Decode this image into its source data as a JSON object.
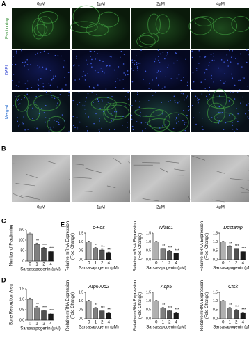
{
  "image_panel": {
    "label": "A",
    "columns": [
      "0μM",
      "1μM",
      "2μM",
      "4μM"
    ],
    "rows": [
      "F-actin ring",
      "DAPI",
      "Merged"
    ]
  },
  "sem_panel": {
    "label": "B",
    "columns": [
      "0μM",
      "1μM",
      "2μM",
      "4μM"
    ]
  },
  "chart_data": [
    {
      "type": "bar",
      "panel": "C",
      "ylabel": [
        "Number of F-actin ring"
      ],
      "xlabel": "Sarsasapogenin (μM)",
      "categories": [
        "0",
        "1",
        "2",
        "4"
      ],
      "values": [
        130,
        80,
        60,
        45
      ],
      "errors": [
        8,
        6,
        5,
        4
      ],
      "annotations": [
        null,
        "**",
        "***",
        "***"
      ],
      "colors": [
        "#b0b0b0",
        "#808080",
        "#505050",
        "#1a1a1a"
      ],
      "ylim": [
        0,
        150
      ],
      "yticks": [
        0,
        50,
        100,
        150
      ]
    },
    {
      "type": "bar",
      "panel": "D",
      "ylabel": [
        "Bone Resorption Area"
      ],
      "xlabel": "Sarsasapogenin (μM)",
      "categories": [
        "0",
        "1",
        "2",
        "4"
      ],
      "values": [
        1.0,
        0.6,
        0.45,
        0.3
      ],
      "errors": [
        0.06,
        0.05,
        0.04,
        0.04
      ],
      "annotations": [
        null,
        "**",
        "***",
        "***"
      ],
      "colors": [
        "#b0b0b0",
        "#808080",
        "#505050",
        "#1a1a1a"
      ],
      "ylim": [
        0,
        1.5
      ],
      "yticks": [
        {
          "value": 0,
          "label": "0.0"
        },
        {
          "value": 0.5,
          "label": "0.5"
        },
        {
          "value": 1.0,
          "label": "1.0"
        },
        {
          "value": 1.5,
          "label": "1.5"
        }
      ]
    },
    {
      "type": "bar",
      "panel": "E",
      "title": "c-Fos",
      "ylabel": [
        "Relative mRNA Expression",
        "(Fold Change)"
      ],
      "xlabel": "Sarsasapogenin (μM)",
      "categories": [
        "0",
        "1",
        "2",
        "4"
      ],
      "values": [
        1.0,
        0.65,
        0.55,
        0.4
      ],
      "errors": [
        0.05,
        0.04,
        0.04,
        0.03
      ],
      "annotations": [
        null,
        "**",
        "***",
        "***"
      ],
      "colors": [
        "#b0b0b0",
        "#808080",
        "#505050",
        "#1a1a1a"
      ],
      "ylim": [
        0,
        1.5
      ],
      "yticks": [
        {
          "value": 0,
          "label": "0.0"
        },
        {
          "value": 0.5,
          "label": "0.5"
        },
        {
          "value": 1.0,
          "label": "1.0"
        },
        {
          "value": 1.5,
          "label": "1.5"
        }
      ]
    },
    {
      "type": "bar",
      "title": "Nfatc1",
      "ylabel": [
        "Relative mRNA Expression",
        "(Fold Change)"
      ],
      "xlabel": "Sarsasapogenin (μM)",
      "categories": [
        "0",
        "1",
        "2",
        "4"
      ],
      "values": [
        1.0,
        0.6,
        0.5,
        0.35
      ],
      "errors": [
        0.05,
        0.04,
        0.04,
        0.03
      ],
      "annotations": [
        null,
        "**",
        "***",
        "***"
      ],
      "colors": [
        "#b0b0b0",
        "#808080",
        "#505050",
        "#1a1a1a"
      ],
      "ylim": [
        0,
        1.5
      ],
      "yticks": [
        {
          "value": 0,
          "label": "0.0"
        },
        {
          "value": 0.5,
          "label": "0.5"
        },
        {
          "value": 1.0,
          "label": "1.0"
        },
        {
          "value": 1.5,
          "label": "1.5"
        }
      ]
    },
    {
      "type": "bar",
      "title": "Dcstamp",
      "ylabel": [
        "Relative mRNA Expression",
        "(Fold Change)"
      ],
      "xlabel": "Sarsasapogenin (μM)",
      "categories": [
        "0",
        "1",
        "2",
        "4"
      ],
      "values": [
        1.0,
        0.75,
        0.6,
        0.45
      ],
      "errors": [
        0.05,
        0.04,
        0.04,
        0.03
      ],
      "annotations": [
        null,
        "**",
        "***",
        "***"
      ],
      "colors": [
        "#b0b0b0",
        "#808080",
        "#505050",
        "#1a1a1a"
      ],
      "ylim": [
        0,
        1.5
      ],
      "yticks": [
        {
          "value": 0,
          "label": "0.0"
        },
        {
          "value": 0.5,
          "label": "0.5"
        },
        {
          "value": 1.0,
          "label": "1.0"
        },
        {
          "value": 1.5,
          "label": "1.5"
        }
      ]
    },
    {
      "type": "bar",
      "title": "Atp6v0d2",
      "ylabel": [
        "Relative mRNA Expression",
        "(Fold Change)"
      ],
      "xlabel": "Sarsasapogenin (μM)",
      "categories": [
        "0",
        "1",
        "2",
        "4"
      ],
      "values": [
        1.0,
        0.6,
        0.45,
        0.35
      ],
      "errors": [
        0.05,
        0.04,
        0.04,
        0.03
      ],
      "annotations": [
        null,
        "**",
        "***",
        "***"
      ],
      "colors": [
        "#b0b0b0",
        "#808080",
        "#505050",
        "#1a1a1a"
      ],
      "ylim": [
        0,
        1.5
      ],
      "yticks": [
        {
          "value": 0,
          "label": "0.0"
        },
        {
          "value": 0.5,
          "label": "0.5"
        },
        {
          "value": 1.0,
          "label": "1.0"
        },
        {
          "value": 1.5,
          "label": "1.5"
        }
      ]
    },
    {
      "type": "bar",
      "title": "Acp5",
      "ylabel": [
        "Relative mRNA Expression",
        "(Fold Change)"
      ],
      "xlabel": "Sarsasapogenin (μM)",
      "categories": [
        "0",
        "1",
        "2",
        "4"
      ],
      "values": [
        1.0,
        0.6,
        0.45,
        0.35
      ],
      "errors": [
        0.05,
        0.04,
        0.04,
        0.03
      ],
      "annotations": [
        null,
        "**",
        "***",
        "***"
      ],
      "colors": [
        "#b0b0b0",
        "#808080",
        "#505050",
        "#1a1a1a"
      ],
      "ylim": [
        0,
        1.5
      ],
      "yticks": [
        {
          "value": 0,
          "label": "0.0"
        },
        {
          "value": 0.5,
          "label": "0.5"
        },
        {
          "value": 1.0,
          "label": "1.0"
        },
        {
          "value": 1.5,
          "label": "1.5"
        }
      ]
    },
    {
      "type": "bar",
      "title": "Ctsk",
      "ylabel": [
        "Relative mRNA Expression",
        "(Fold Change)"
      ],
      "xlabel": "Sarsasapogenin (μM)",
      "categories": [
        "0",
        "1",
        "2",
        "4"
      ],
      "values": [
        1.0,
        0.6,
        0.5,
        0.35
      ],
      "errors": [
        0.05,
        0.04,
        0.04,
        0.03
      ],
      "annotations": [
        null,
        "**",
        "***",
        "***"
      ],
      "colors": [
        "#b0b0b0",
        "#808080",
        "#505050",
        "#1a1a1a"
      ],
      "ylim": [
        0,
        1.5
      ],
      "yticks": [
        {
          "value": 0,
          "label": "0.0"
        },
        {
          "value": 0.5,
          "label": "0.5"
        },
        {
          "value": 1.0,
          "label": "1.0"
        },
        {
          "value": 1.5,
          "label": "1.5"
        }
      ]
    }
  ]
}
